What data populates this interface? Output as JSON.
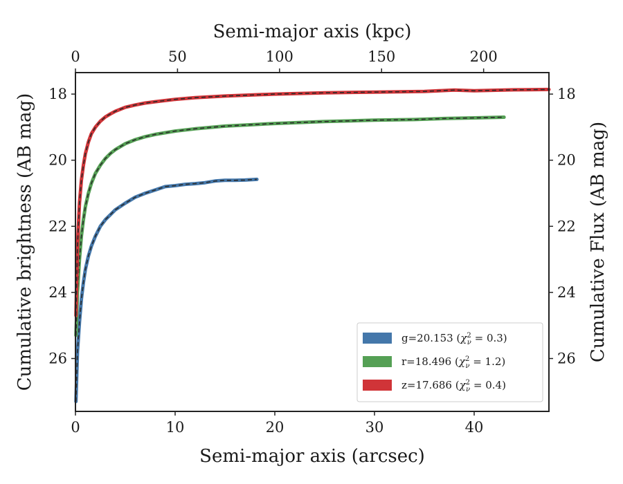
{
  "chart_data": {
    "type": "line",
    "xlabel": "Semi-major axis (arcsec)",
    "x2label": "Semi-major axis (kpc)",
    "ylabel": "Cumulative brightness (AB mag)",
    "y2label": "Cumulative Flux (AB mag)",
    "xlim": [
      0,
      47.5
    ],
    "x2lim": [
      0,
      232
    ],
    "ylim": [
      27.6,
      17.35
    ],
    "y_inverted": true,
    "xticks": [
      0,
      10,
      20,
      30,
      40
    ],
    "x2ticks": [
      0,
      50,
      100,
      150,
      200
    ],
    "yticks": [
      18,
      20,
      22,
      24,
      26
    ],
    "grid": false,
    "legend_position": "lower-right",
    "series": [
      {
        "name": "g=20.153",
        "chi2": "0.3",
        "color": "#4477aa",
        "points": [
          [
            0.05,
            27.3
          ],
          [
            0.2,
            25.8
          ],
          [
            0.4,
            24.9
          ],
          [
            0.6,
            24.2
          ],
          [
            0.8,
            23.7
          ],
          [
            1.0,
            23.3
          ],
          [
            1.3,
            22.9
          ],
          [
            1.6,
            22.6
          ],
          [
            2.0,
            22.3
          ],
          [
            2.5,
            22.0
          ],
          [
            3.0,
            21.8
          ],
          [
            3.5,
            21.65
          ],
          [
            4.0,
            21.5
          ],
          [
            5.0,
            21.3
          ],
          [
            6.0,
            21.12
          ],
          [
            7.0,
            21.0
          ],
          [
            8.0,
            20.9
          ],
          [
            9.0,
            20.8
          ],
          [
            10.0,
            20.77
          ],
          [
            11.0,
            20.73
          ],
          [
            12.0,
            20.71
          ],
          [
            13.0,
            20.68
          ],
          [
            14.0,
            20.63
          ],
          [
            15.0,
            20.61
          ],
          [
            16.0,
            20.61
          ],
          [
            17.0,
            20.6
          ],
          [
            18.2,
            20.58
          ]
        ]
      },
      {
        "name": "r=18.496",
        "chi2": "1.2",
        "color": "#55a055",
        "points": [
          [
            0.05,
            25.3
          ],
          [
            0.2,
            24.0
          ],
          [
            0.4,
            23.0
          ],
          [
            0.6,
            22.3
          ],
          [
            0.8,
            21.8
          ],
          [
            1.0,
            21.4
          ],
          [
            1.3,
            21.0
          ],
          [
            1.6,
            20.7
          ],
          [
            2.0,
            20.4
          ],
          [
            2.5,
            20.15
          ],
          [
            3.0,
            19.95
          ],
          [
            3.5,
            19.8
          ],
          [
            4.0,
            19.68
          ],
          [
            5.0,
            19.5
          ],
          [
            6.0,
            19.38
          ],
          [
            7.0,
            19.29
          ],
          [
            8.0,
            19.22
          ],
          [
            10.0,
            19.12
          ],
          [
            12.0,
            19.05
          ],
          [
            15.0,
            18.97
          ],
          [
            18.0,
            18.92
          ],
          [
            20.0,
            18.89
          ],
          [
            25.0,
            18.83
          ],
          [
            30.0,
            18.79
          ],
          [
            34.0,
            18.77
          ],
          [
            37.0,
            18.74
          ],
          [
            40.0,
            18.72
          ],
          [
            43.0,
            18.7
          ]
        ]
      },
      {
        "name": "z=17.686",
        "chi2": "0.4",
        "color": "#d03438",
        "points": [
          [
            0.05,
            24.7
          ],
          [
            0.2,
            22.6
          ],
          [
            0.4,
            21.3
          ],
          [
            0.6,
            20.6
          ],
          [
            0.8,
            20.15
          ],
          [
            1.0,
            19.8
          ],
          [
            1.3,
            19.45
          ],
          [
            1.6,
            19.2
          ],
          [
            2.0,
            19.0
          ],
          [
            2.5,
            18.82
          ],
          [
            3.0,
            18.69
          ],
          [
            3.5,
            18.6
          ],
          [
            4.0,
            18.52
          ],
          [
            5.0,
            18.4
          ],
          [
            6.0,
            18.33
          ],
          [
            7.0,
            18.27
          ],
          [
            8.0,
            18.23
          ],
          [
            10.0,
            18.16
          ],
          [
            12.0,
            18.11
          ],
          [
            15.0,
            18.06
          ],
          [
            20.0,
            18.0
          ],
          [
            25.0,
            17.96
          ],
          [
            30.0,
            17.94
          ],
          [
            35.0,
            17.92
          ],
          [
            38.0,
            17.88
          ],
          [
            40.0,
            17.9
          ],
          [
            44.0,
            17.87
          ],
          [
            47.5,
            17.86
          ]
        ]
      }
    ]
  }
}
